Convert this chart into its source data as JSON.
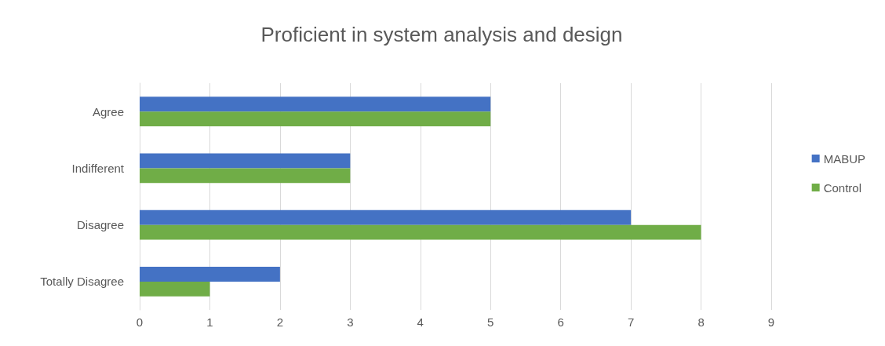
{
  "chart_data": {
    "type": "bar",
    "orientation": "horizontal",
    "title": "Proficient in system analysis and design",
    "categories": [
      "Agree",
      "Indifferent",
      "Disagree",
      "Totally Disagree"
    ],
    "series": [
      {
        "name": "MABUP",
        "color": "#4472c4",
        "values": [
          5,
          3,
          7,
          2
        ]
      },
      {
        "name": "Control",
        "color": "#70ad47",
        "values": [
          5,
          3,
          8,
          1
        ]
      }
    ],
    "xlim": [
      0,
      9
    ],
    "xticks": [
      0,
      1,
      2,
      3,
      4,
      5,
      6,
      7,
      8,
      9
    ],
    "grid": "x",
    "legend": "right"
  }
}
